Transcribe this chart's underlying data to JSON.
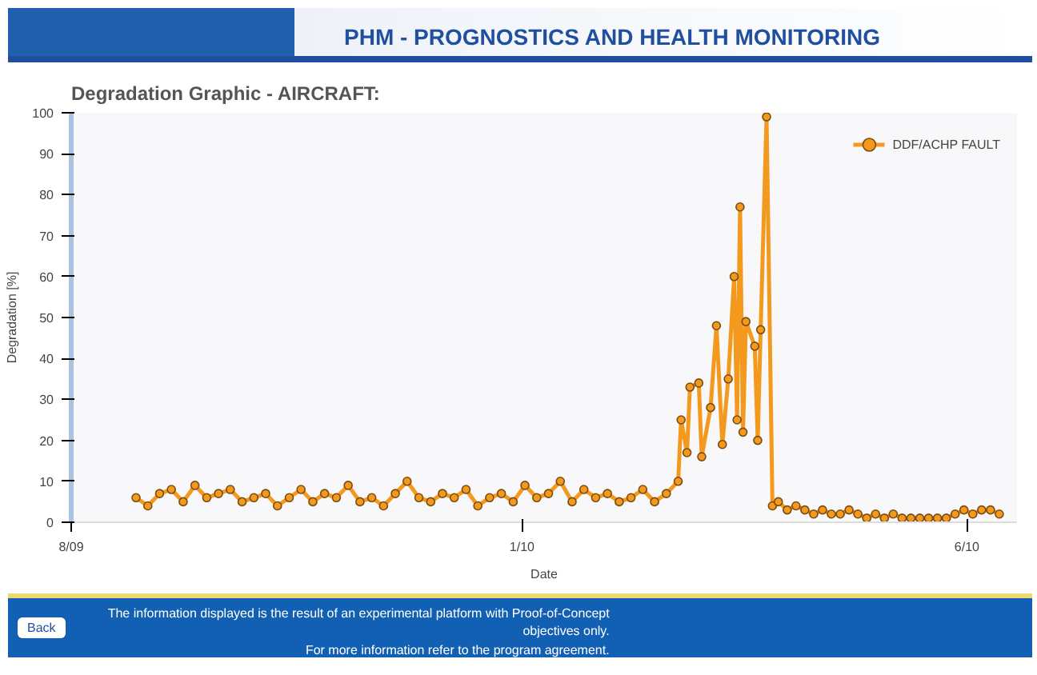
{
  "chart_data": {
    "type": "line",
    "title": "PHM - PROGNOSTICS AND HEALTH MONITORING",
    "subtitle": "Degradation Graphic - AIRCRAFT:",
    "xlabel": "Date",
    "ylabel": "Degradation [%]",
    "x": [
      "2009-08-23",
      "2009-08-27",
      "2009-08-31",
      "2009-09-04",
      "2009-09-08",
      "2009-09-12",
      "2009-09-16",
      "2009-09-20",
      "2009-09-24",
      "2009-09-28",
      "2009-10-02",
      "2009-10-06",
      "2009-10-10",
      "2009-10-14",
      "2009-10-18",
      "2009-10-22",
      "2009-10-26",
      "2009-10-30",
      "2009-11-03",
      "2009-11-07",
      "2009-11-11",
      "2009-11-15",
      "2009-11-19",
      "2009-11-23",
      "2009-11-27",
      "2009-12-01",
      "2009-12-05",
      "2009-12-09",
      "2009-12-13",
      "2009-12-17",
      "2009-12-21",
      "2009-12-25",
      "2009-12-29",
      "2010-01-02",
      "2010-01-06",
      "2010-01-10",
      "2010-01-14",
      "2010-01-18",
      "2010-01-22",
      "2010-01-26",
      "2010-01-30",
      "2010-02-03",
      "2010-02-07",
      "2010-02-11",
      "2010-02-15",
      "2010-02-19",
      "2010-02-23",
      "2010-02-24",
      "2010-02-26",
      "2010-02-27",
      "2010-03-02",
      "2010-03-03",
      "2010-03-06",
      "2010-03-08",
      "2010-03-10",
      "2010-03-12",
      "2010-03-14",
      "2010-03-15",
      "2010-03-16",
      "2010-03-17",
      "2010-03-18",
      "2010-03-21",
      "2010-03-22",
      "2010-03-23",
      "2010-03-25",
      "2010-03-27",
      "2010-03-29",
      "2010-04-01",
      "2010-04-04",
      "2010-04-07",
      "2010-04-10",
      "2010-04-13",
      "2010-04-16",
      "2010-04-19",
      "2010-04-22",
      "2010-04-25",
      "2010-04-28",
      "2010-05-01",
      "2010-05-04",
      "2010-05-07",
      "2010-05-10",
      "2010-05-13",
      "2010-05-16",
      "2010-05-19",
      "2010-05-22",
      "2010-05-25",
      "2010-05-28",
      "2010-05-31",
      "2010-06-03",
      "2010-06-06",
      "2010-06-09",
      "2010-06-12"
    ],
    "series": [
      {
        "name": "DDF/ACHP FAULT",
        "color": "#f39a1e",
        "values": [
          6,
          4,
          7,
          8,
          5,
          9,
          6,
          7,
          8,
          5,
          6,
          7,
          4,
          6,
          8,
          5,
          7,
          6,
          9,
          5,
          6,
          4,
          7,
          10,
          6,
          5,
          7,
          6,
          8,
          4,
          6,
          7,
          5,
          9,
          6,
          7,
          10,
          5,
          8,
          6,
          7,
          5,
          6,
          8,
          5,
          7,
          10,
          25,
          17,
          33,
          34,
          16,
          28,
          48,
          19,
          35,
          60,
          25,
          77,
          22,
          49,
          43,
          20,
          47,
          99,
          4,
          5,
          3,
          4,
          3,
          2,
          3,
          2,
          2,
          3,
          2,
          1,
          2,
          1,
          2,
          1,
          1,
          1,
          1,
          1,
          1,
          2,
          3,
          2,
          3,
          3,
          2
        ]
      }
    ],
    "xlim": [
      "2009-08-01",
      "2010-06-18"
    ],
    "xticks": [
      {
        "value": "2009-08-01",
        "label": "8/09"
      },
      {
        "value": "2010-01-01",
        "label": "1/10"
      },
      {
        "value": "2010-06-01",
        "label": "6/10"
      }
    ],
    "ylim": [
      0,
      100
    ],
    "yticks": [
      0,
      10,
      20,
      30,
      40,
      50,
      60,
      70,
      80,
      90,
      100
    ],
    "marker": "circle",
    "line_style": "solid",
    "grid": false,
    "legend": "top right",
    "annotations": [
      "The information displayed is the result of an experimental platform with Proof-of-Concept objectives only.",
      "For more information refer to the program agreement.",
      "Back"
    ]
  }
}
